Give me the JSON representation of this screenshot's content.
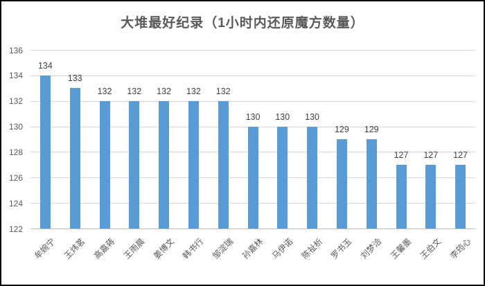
{
  "chart_data": {
    "type": "bar",
    "title": "大堆最好纪录（1小时内还原魔方数量）",
    "categories": [
      "牟婉宁",
      "王炜茗",
      "高嘉蒋",
      "王雨晨",
      "姜博文",
      "韩书行",
      "邹淀瑞",
      "孙嘉林",
      "马伊诺",
      "陈祉析",
      "罗书玉",
      "刘梦洽",
      "王馨墨",
      "王伯文",
      "李筠心"
    ],
    "values": [
      134,
      133,
      132,
      132,
      132,
      132,
      132,
      130,
      130,
      130,
      129,
      129,
      127,
      127,
      127
    ],
    "xlabel": "",
    "ylabel": "",
    "ylim": [
      122,
      136
    ],
    "yticks": [
      122,
      124,
      126,
      128,
      130,
      132,
      134,
      136
    ],
    "grid": true,
    "legend": false,
    "data_labels": true,
    "colors": {
      "bar": "#5b9bd5",
      "gridline": "#d9d9d9",
      "axis_line": "#bfbfbf",
      "title_text": "#595959",
      "tick_text": "#595959",
      "value_label_text": "#404040",
      "frame_border": "#000000",
      "background": "#ffffff"
    }
  }
}
